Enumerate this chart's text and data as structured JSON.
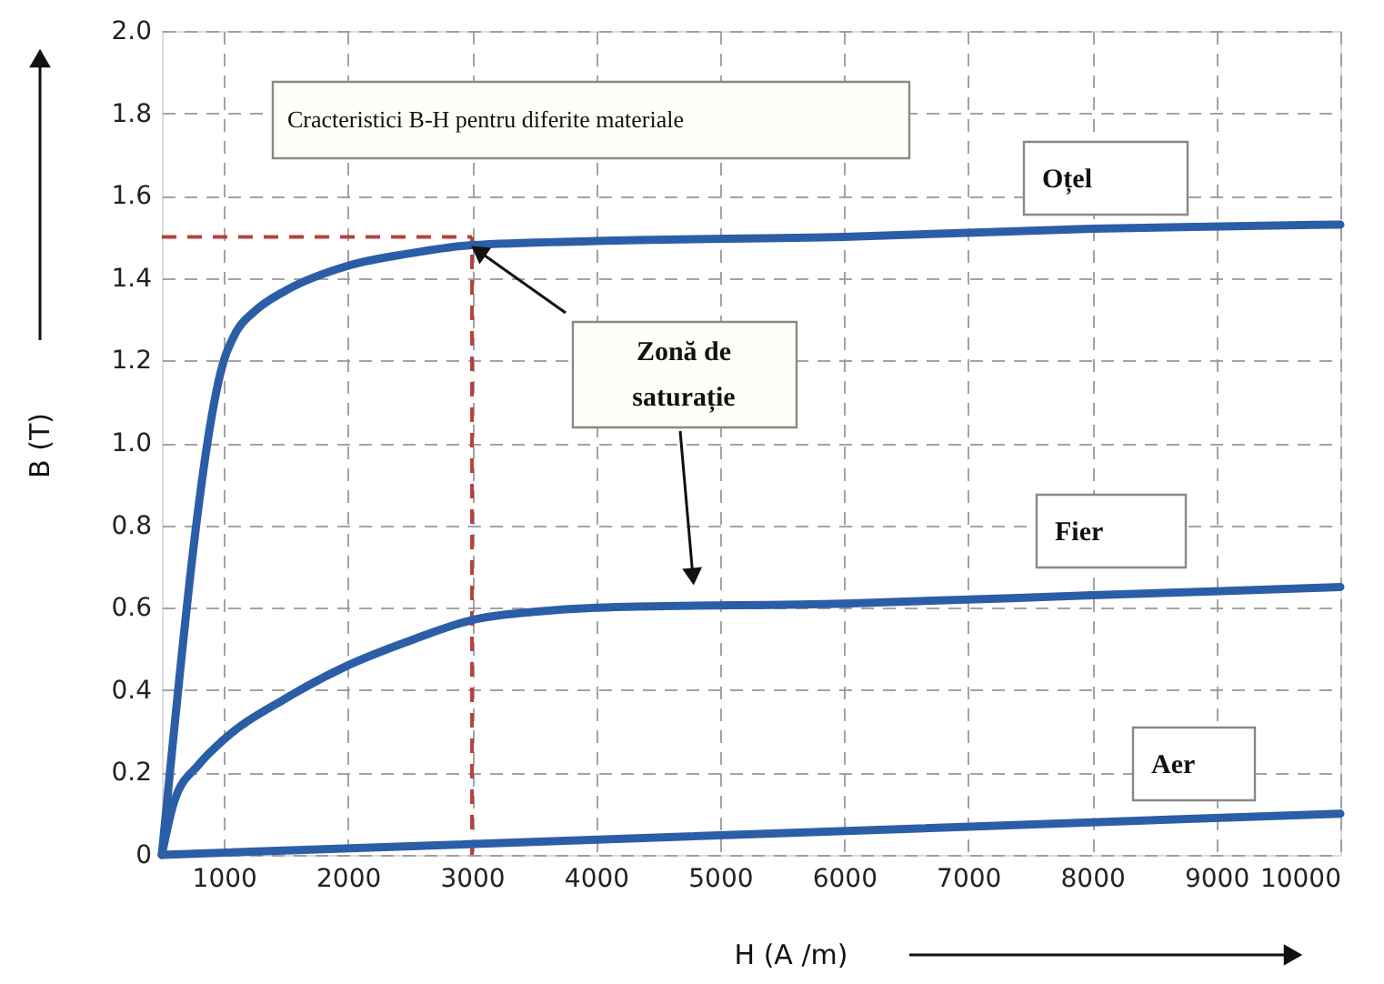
{
  "chart_data": {
    "type": "line",
    "title": "Cracteristici B-H pentru diferite materiale",
    "xlabel": "H (A /m)",
    "ylabel": "B (T)",
    "xlim": [
      500,
      10000
    ],
    "xticks": [
      1000,
      2000,
      3000,
      4000,
      5000,
      6000,
      7000,
      8000,
      9000,
      10000
    ],
    "ylim": [
      0,
      2.0
    ],
    "yticks": [
      0,
      0.2,
      0.4,
      0.6,
      0.8,
      {
        "value": 1.0,
        "label": "1.0"
      },
      1.2,
      1.4,
      1.6,
      1.8,
      {
        "value": 2.0,
        "label": "2.0"
      }
    ],
    "grid": true,
    "line_style": "solid",
    "series": [
      {
        "name": "Oțel",
        "color": "#2b5ea7",
        "x": [
          500,
          1000,
          1100,
          1250,
          1500,
          2000,
          2500,
          3000,
          4000,
          6000,
          8000,
          10000
        ],
        "values": [
          0,
          1.2,
          1.27,
          1.32,
          1.37,
          1.43,
          1.46,
          1.48,
          1.49,
          1.5,
          1.52,
          1.53
        ]
      },
      {
        "name": "Fier",
        "color": "#2b5ea7",
        "x": [
          500,
          600,
          800,
          1000,
          1500,
          2000,
          2500,
          3000,
          3500,
          4000,
          6000,
          8000,
          10000
        ],
        "values": [
          0,
          0.13,
          0.22,
          0.28,
          0.38,
          0.46,
          0.52,
          0.57,
          0.59,
          0.6,
          0.61,
          0.63,
          0.65
        ]
      },
      {
        "name": "Aer",
        "color": "#2b5ea7",
        "x": [
          500,
          10000
        ],
        "values": [
          0,
          0.1
        ]
      }
    ],
    "ref_lines": [
      {
        "axis": "y",
        "value": 1.5,
        "color": "#b5423f",
        "line_style": "dashed"
      },
      {
        "axis": "x",
        "value": 3000,
        "color": "#b5423f",
        "line_style": "dashed"
      }
    ],
    "annotations": [
      "Zonă de saturație"
    ]
  }
}
